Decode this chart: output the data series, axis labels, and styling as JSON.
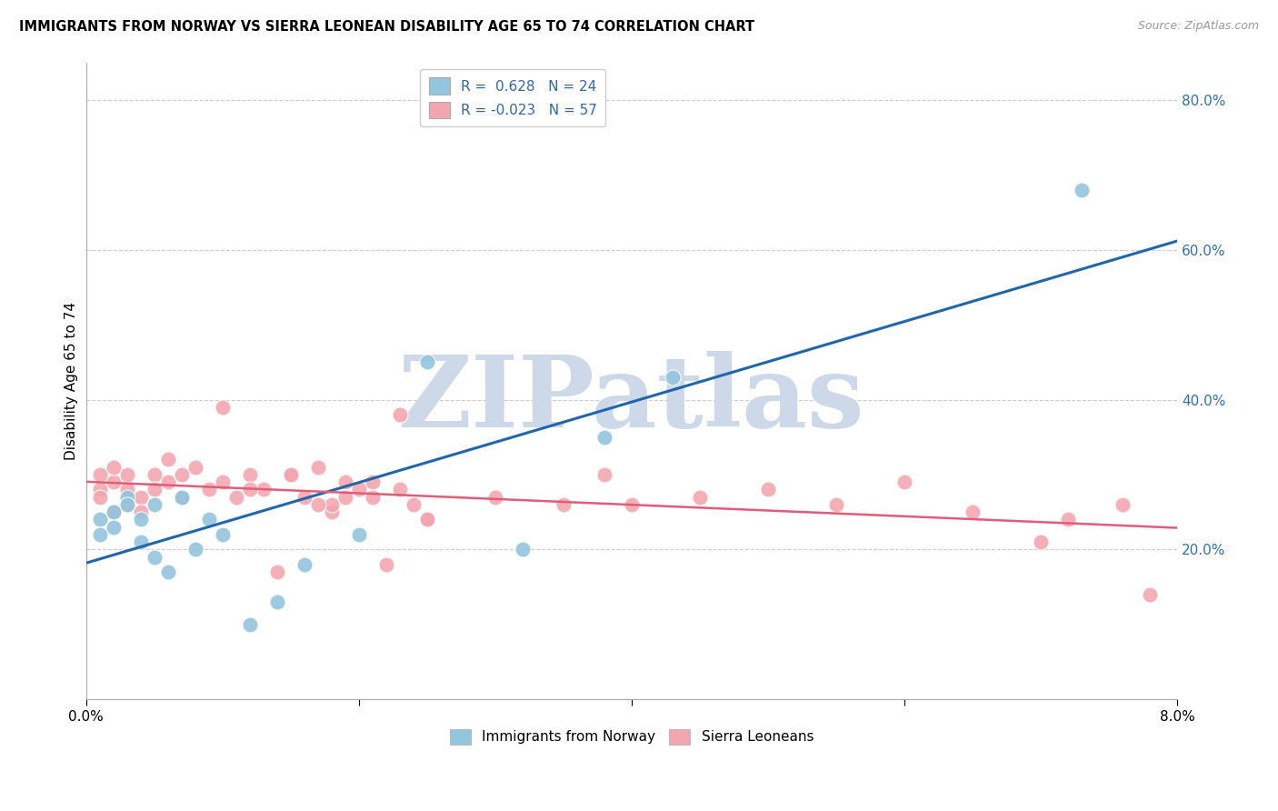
{
  "title": "IMMIGRANTS FROM NORWAY VS SIERRA LEONEAN DISABILITY AGE 65 TO 74 CORRELATION CHART",
  "source": "Source: ZipAtlas.com",
  "ylabel": "Disability Age 65 to 74",
  "legend1_r": " 0.628",
  "legend1_n": "24",
  "legend2_r": "-0.023",
  "legend2_n": "57",
  "xlim": [
    0.0,
    0.08
  ],
  "ylim": [
    0.0,
    0.85
  ],
  "yticks": [
    0.2,
    0.4,
    0.6,
    0.8
  ],
  "xticks": [
    0.0,
    0.02,
    0.04,
    0.06,
    0.08
  ],
  "blue_color": "#92c5de",
  "pink_color": "#f4a6b0",
  "blue_line_color": "#2166ac",
  "pink_line_color": "#e05c7a",
  "norway_x": [
    0.001,
    0.001,
    0.002,
    0.002,
    0.003,
    0.003,
    0.004,
    0.004,
    0.005,
    0.005,
    0.006,
    0.007,
    0.008,
    0.009,
    0.01,
    0.012,
    0.014,
    0.016,
    0.02,
    0.025,
    0.032,
    0.038,
    0.043,
    0.073
  ],
  "norway_y": [
    0.24,
    0.22,
    0.25,
    0.23,
    0.27,
    0.26,
    0.24,
    0.21,
    0.26,
    0.19,
    0.17,
    0.27,
    0.2,
    0.24,
    0.22,
    0.1,
    0.13,
    0.18,
    0.22,
    0.45,
    0.2,
    0.35,
    0.43,
    0.68
  ],
  "sierra_x": [
    0.001,
    0.001,
    0.001,
    0.002,
    0.002,
    0.002,
    0.003,
    0.003,
    0.003,
    0.004,
    0.004,
    0.005,
    0.005,
    0.006,
    0.006,
    0.007,
    0.007,
    0.008,
    0.009,
    0.01,
    0.011,
    0.012,
    0.013,
    0.014,
    0.015,
    0.016,
    0.017,
    0.018,
    0.018,
    0.019,
    0.02,
    0.021,
    0.022,
    0.023,
    0.024,
    0.025,
    0.01,
    0.012,
    0.015,
    0.017,
    0.019,
    0.021,
    0.023,
    0.025,
    0.04,
    0.045,
    0.05,
    0.055,
    0.06,
    0.065,
    0.07,
    0.072,
    0.076,
    0.03,
    0.035,
    0.038,
    0.078
  ],
  "sierra_y": [
    0.3,
    0.28,
    0.27,
    0.29,
    0.25,
    0.31,
    0.28,
    0.26,
    0.3,
    0.27,
    0.25,
    0.3,
    0.28,
    0.32,
    0.29,
    0.3,
    0.27,
    0.31,
    0.28,
    0.29,
    0.27,
    0.3,
    0.28,
    0.17,
    0.3,
    0.27,
    0.31,
    0.25,
    0.26,
    0.29,
    0.28,
    0.27,
    0.18,
    0.38,
    0.26,
    0.24,
    0.39,
    0.28,
    0.3,
    0.26,
    0.27,
    0.29,
    0.28,
    0.24,
    0.26,
    0.27,
    0.28,
    0.26,
    0.29,
    0.25,
    0.21,
    0.24,
    0.26,
    0.27,
    0.26,
    0.3,
    0.14
  ],
  "watermark_text": "ZIPatlas",
  "watermark_color": "#cdd8e8"
}
